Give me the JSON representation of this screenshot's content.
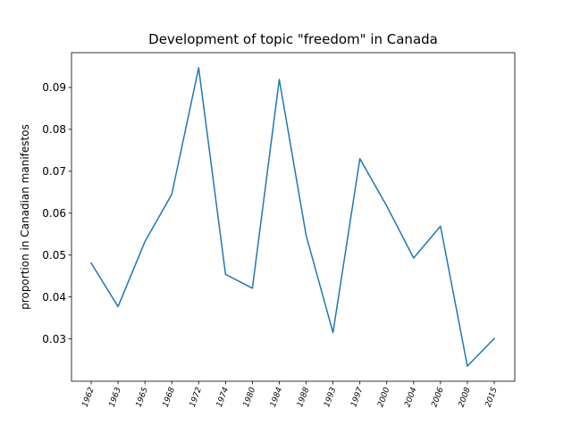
{
  "chart_data": {
    "type": "line",
    "title": "Development of topic \"freedom\" in Canada",
    "xlabel": "",
    "ylabel": "proportion in Canadian manifestos",
    "categories": [
      "1962",
      "1963",
      "1965",
      "1968",
      "1972",
      "1974",
      "1980",
      "1984",
      "1988",
      "1993",
      "1997",
      "2000",
      "2004",
      "2006",
      "2008",
      "2015"
    ],
    "series": [
      {
        "values": [
          0.0481,
          0.0377,
          0.0532,
          0.0645,
          0.0947,
          0.0454,
          0.0421,
          0.0919,
          0.0547,
          0.0315,
          0.073,
          0.0617,
          0.0493,
          0.0569,
          0.0235,
          0.0301
        ],
        "color": "#1f77b4"
      }
    ],
    "yticks": [
      0.03,
      0.04,
      0.05,
      0.06,
      0.07,
      0.08,
      0.09
    ],
    "ytick_labels": [
      "0.03",
      "0.04",
      "0.05",
      "0.06",
      "0.07",
      "0.08",
      "0.09"
    ],
    "ylim": [
      0.0199,
      0.0983
    ],
    "grid": false,
    "legend": false
  }
}
